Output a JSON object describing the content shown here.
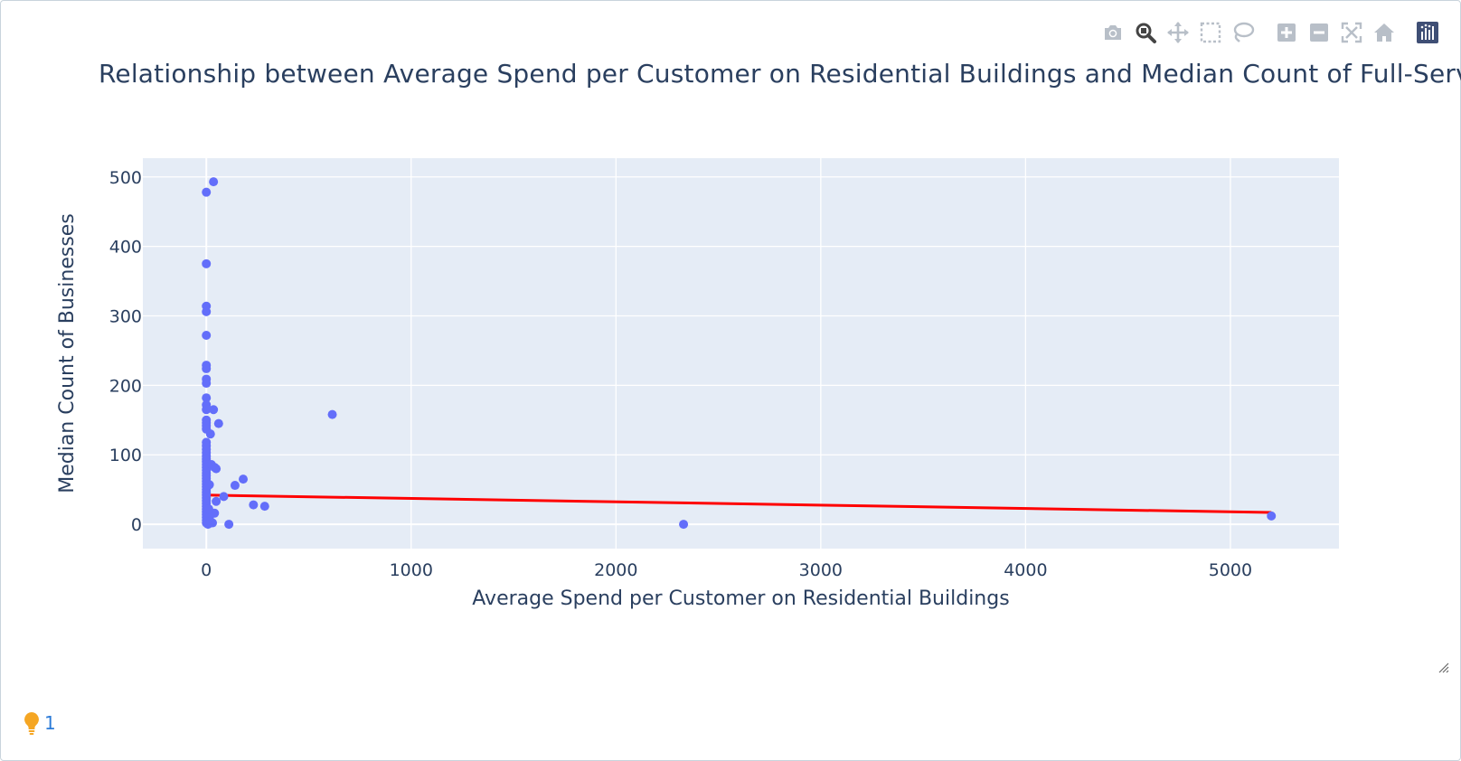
{
  "chart_data": {
    "type": "scatter",
    "title": "Relationship between Average Spend per Customer on Residential Buildings and Median Count of Full-Service",
    "xlabel": "Average Spend per Customer on Residential Buildings",
    "ylabel": "Median Count of Businesses",
    "xlim": [
      -310,
      5530
    ],
    "ylim": [
      -35,
      527
    ],
    "xticks": [
      0,
      1000,
      2000,
      3000,
      4000,
      5000
    ],
    "yticks": [
      0,
      100,
      200,
      300,
      400,
      500
    ],
    "grid": true,
    "legend": "none",
    "colors": {
      "points": "#636efa",
      "trend": "#ff0000",
      "plot_bg": "#e5ecf6",
      "text": "#2a3f5f"
    },
    "points": [
      [
        0,
        478
      ],
      [
        35,
        493
      ],
      [
        0,
        375
      ],
      [
        0,
        314
      ],
      [
        0,
        306
      ],
      [
        0,
        272
      ],
      [
        0,
        229
      ],
      [
        0,
        224
      ],
      [
        0,
        209
      ],
      [
        0,
        203
      ],
      [
        0,
        182
      ],
      [
        0,
        172
      ],
      [
        0,
        165
      ],
      [
        35,
        165
      ],
      [
        0,
        150
      ],
      [
        0,
        146
      ],
      [
        0,
        142
      ],
      [
        0,
        137
      ],
      [
        60,
        145
      ],
      [
        20,
        130
      ],
      [
        615,
        158
      ],
      [
        0,
        118
      ],
      [
        0,
        113
      ],
      [
        0,
        108
      ],
      [
        0,
        103
      ],
      [
        0,
        98
      ],
      [
        0,
        94
      ],
      [
        0,
        90
      ],
      [
        0,
        86
      ],
      [
        0,
        82
      ],
      [
        0,
        78
      ],
      [
        0,
        74
      ],
      [
        0,
        70
      ],
      [
        0,
        66
      ],
      [
        0,
        62
      ],
      [
        0,
        58
      ],
      [
        0,
        54
      ],
      [
        0,
        50
      ],
      [
        0,
        46
      ],
      [
        0,
        42
      ],
      [
        0,
        38
      ],
      [
        0,
        34
      ],
      [
        0,
        30
      ],
      [
        0,
        26
      ],
      [
        0,
        22
      ],
      [
        0,
        18
      ],
      [
        0,
        14
      ],
      [
        0,
        10
      ],
      [
        0,
        6
      ],
      [
        0,
        2
      ],
      [
        25,
        86
      ],
      [
        40,
        82
      ],
      [
        48,
        80
      ],
      [
        15,
        57
      ],
      [
        180,
        65
      ],
      [
        140,
        56
      ],
      [
        85,
        40
      ],
      [
        48,
        33
      ],
      [
        40,
        16
      ],
      [
        230,
        28
      ],
      [
        285,
        26
      ],
      [
        15,
        10
      ],
      [
        20,
        4
      ],
      [
        30,
        2
      ],
      [
        110,
        0
      ],
      [
        8,
        0
      ],
      [
        12,
        22
      ],
      [
        2330,
        0
      ],
      [
        5200,
        12
      ]
    ],
    "trendline": {
      "x": [
        0,
        5200
      ],
      "y": [
        42,
        17
      ]
    }
  },
  "toolbar": {
    "buttons": [
      {
        "name": "camera-icon",
        "title": "Download plot as a png",
        "active": false
      },
      {
        "name": "zoom-icon",
        "title": "Zoom",
        "active": true
      },
      {
        "name": "pan-icon",
        "title": "Pan",
        "active": false
      },
      {
        "name": "box-select-icon",
        "title": "Box Select",
        "active": false
      },
      {
        "name": "lasso-select-icon",
        "title": "Lasso Select",
        "active": false
      },
      {
        "name": "zoom-in-icon",
        "title": "Zoom in",
        "active": false
      },
      {
        "name": "zoom-out-icon",
        "title": "Zoom out",
        "active": false
      },
      {
        "name": "autoscale-icon",
        "title": "Autoscale",
        "active": false
      },
      {
        "name": "reset-axes-icon",
        "title": "Reset axes",
        "active": false
      },
      {
        "name": "plotly-logo-icon",
        "title": "Produced with Plotly",
        "active": false
      }
    ]
  },
  "hint": {
    "count": "1",
    "icon": "lightbulb-icon"
  }
}
